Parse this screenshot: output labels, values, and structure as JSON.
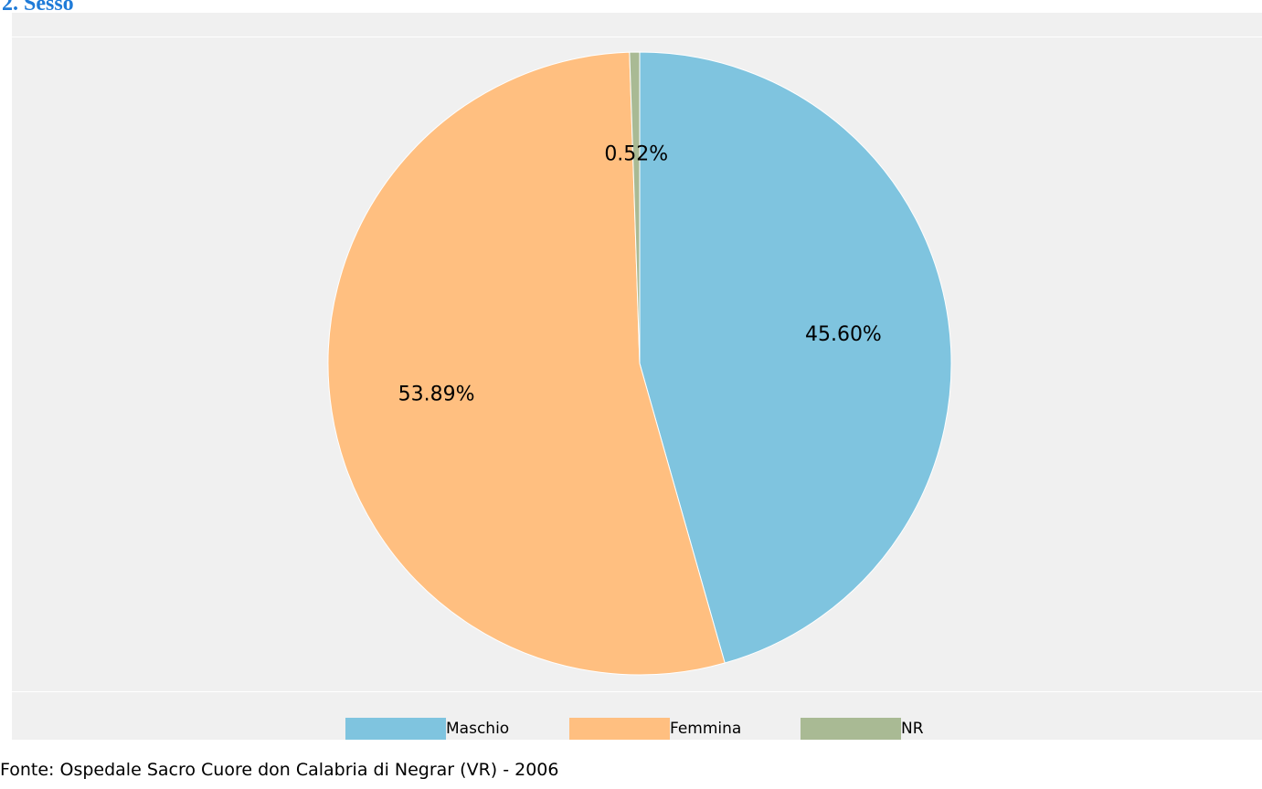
{
  "heading": "2. Sesso",
  "chart_data": {
    "type": "pie",
    "title": "",
    "slices": [
      {
        "label": "Maschio",
        "value": 45.6,
        "display": "45.60%",
        "color": "#7fc4df"
      },
      {
        "label": "Femmina",
        "value": 53.89,
        "display": "53.89%",
        "color": "#ffbf80"
      },
      {
        "label": "NR",
        "value": 0.52,
        "display": "0.52%",
        "color": "#a9ba94"
      }
    ],
    "legend": {
      "placement": "bottom",
      "entries": [
        "Maschio",
        "Femmina",
        "NR"
      ]
    },
    "background": "#f0f0f0"
  },
  "source": "Fonte: Ospedale Sacro Cuore don Calabria di Negrar (VR) - 2006"
}
